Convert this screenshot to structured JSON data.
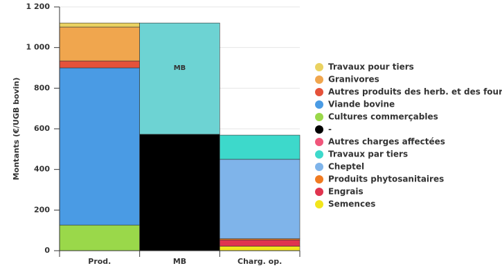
{
  "chart_data": {
    "type": "stacked-bar",
    "y_label": "Montants (€/UGB bovin)",
    "categories": [
      "Prod.",
      "MB",
      "Charg. op."
    ],
    "ylim": [
      0,
      1200
    ],
    "yticks": [
      0,
      200,
      400,
      600,
      800,
      {
        "value": 1000,
        "label": "1 000"
      },
      {
        "value": 1200,
        "label": "1 200"
      }
    ],
    "grid": true,
    "series": [
      {
        "name": "Semences",
        "color": "#f2e51c",
        "values": [
          null,
          null,
          22
        ]
      },
      {
        "name": "Engrais",
        "color": "#e0344f",
        "values": [
          null,
          null,
          31
        ]
      },
      {
        "name": "Produits phytosanitaires",
        "color": "#f07b22",
        "values": [
          null,
          null,
          6
        ]
      },
      {
        "name": "Cheptel",
        "color": "#7fb4ea",
        "values": [
          null,
          null,
          391
        ]
      },
      {
        "name": "Travaux par tiers",
        "color": "#3dd9cb",
        "values": [
          null,
          null,
          119
        ]
      },
      {
        "name": "Autres charges affectées",
        "color": "#f0567b",
        "values": [
          null,
          null,
          null
        ]
      },
      {
        "name": "-",
        "color": "#000000",
        "values": [
          null,
          573,
          null
        ]
      },
      {
        "name": "MB",
        "color": "#6dd3d3",
        "values": [
          null,
          548,
          null
        ],
        "legend": false
      },
      {
        "name": "Cultures commerçables",
        "color": "#9ad84a",
        "values": [
          126,
          null,
          null
        ]
      },
      {
        "name": "Viande bovine",
        "color": "#4a9be4",
        "values": [
          774,
          null,
          null
        ]
      },
      {
        "name": "Autres produits des herb. et des four",
        "color": "#e5523a",
        "values": [
          34,
          null,
          null
        ]
      },
      {
        "name": "Granivores",
        "color": "#f0a64e",
        "values": [
          167,
          null,
          null
        ]
      },
      {
        "name": "Travaux pour tiers",
        "color": "#ead261",
        "values": [
          20,
          null,
          null
        ]
      }
    ]
  }
}
